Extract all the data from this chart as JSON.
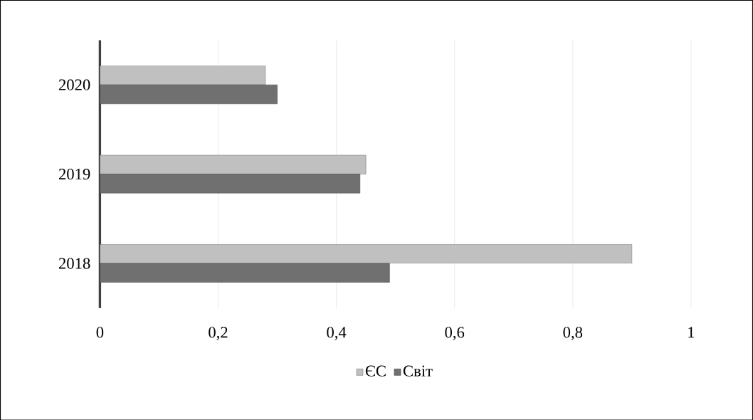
{
  "chart_data": {
    "type": "bar",
    "orientation": "horizontal",
    "categories": [
      "2020",
      "2019",
      "2018"
    ],
    "series": [
      {
        "name": "ЄС",
        "color": "#c0c0c0",
        "values": [
          0.28,
          0.45,
          0.9
        ]
      },
      {
        "name": "Світ",
        "color": "#707070",
        "values": [
          0.3,
          0.44,
          0.49
        ]
      }
    ],
    "xlim": [
      0,
      1
    ],
    "xticks": [
      0,
      {
        "value": 0.2,
        "label": "0,2"
      },
      {
        "value": 0.4,
        "label": "0,4"
      },
      {
        "value": 0.6,
        "label": "0,6"
      },
      {
        "value": 0.8,
        "label": "0,8"
      },
      1
    ],
    "grid": "x",
    "legend": "bottom"
  }
}
